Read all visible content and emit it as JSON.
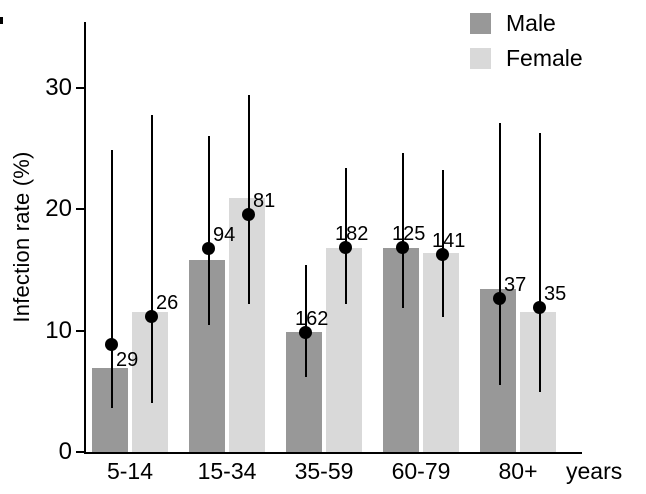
{
  "chart_data": {
    "type": "bar",
    "title": "",
    "ylabel": "Infection rate (%)",
    "xlabel_suffix": "years",
    "categories": [
      "5-14",
      "15-34",
      "35-59",
      "60-79",
      "80+"
    ],
    "yticks": [
      0,
      10,
      20,
      30
    ],
    "ylim": [
      0,
      35.5
    ],
    "grid": false,
    "legend_position": "top-right",
    "axis_color": "#000000",
    "text_color": "#000000",
    "marker_style": "black point with vertical confidence-interval line",
    "series": [
      {
        "name": "Male",
        "bar_color": "#989898",
        "bars": [
          6.9,
          15.8,
          9.9,
          16.8,
          13.4
        ],
        "points": [
          8.8,
          16.7,
          9.8,
          16.8,
          12.6
        ],
        "ci_low": [
          3.6,
          10.5,
          6.2,
          11.9,
          5.5
        ],
        "ci_high": [
          24.9,
          26.0,
          15.4,
          24.6,
          27.1
        ],
        "n": [
          29,
          94,
          162,
          125,
          37
        ],
        "n_label_side": [
          "below",
          "above",
          "above",
          "above",
          "above"
        ]
      },
      {
        "name": "Female",
        "bar_color": "#d9d9d9",
        "bars": [
          11.5,
          20.9,
          16.8,
          16.4,
          11.5
        ],
        "points": [
          11.1,
          19.5,
          16.8,
          16.2,
          11.9
        ],
        "ci_low": [
          4.0,
          12.2,
          12.2,
          11.1,
          4.9
        ],
        "ci_high": [
          27.8,
          29.4,
          23.4,
          23.2,
          26.3
        ],
        "n": [
          26,
          81,
          182,
          141,
          35
        ],
        "n_label_side": [
          "above",
          "above",
          "above",
          "above",
          "above"
        ]
      }
    ]
  }
}
